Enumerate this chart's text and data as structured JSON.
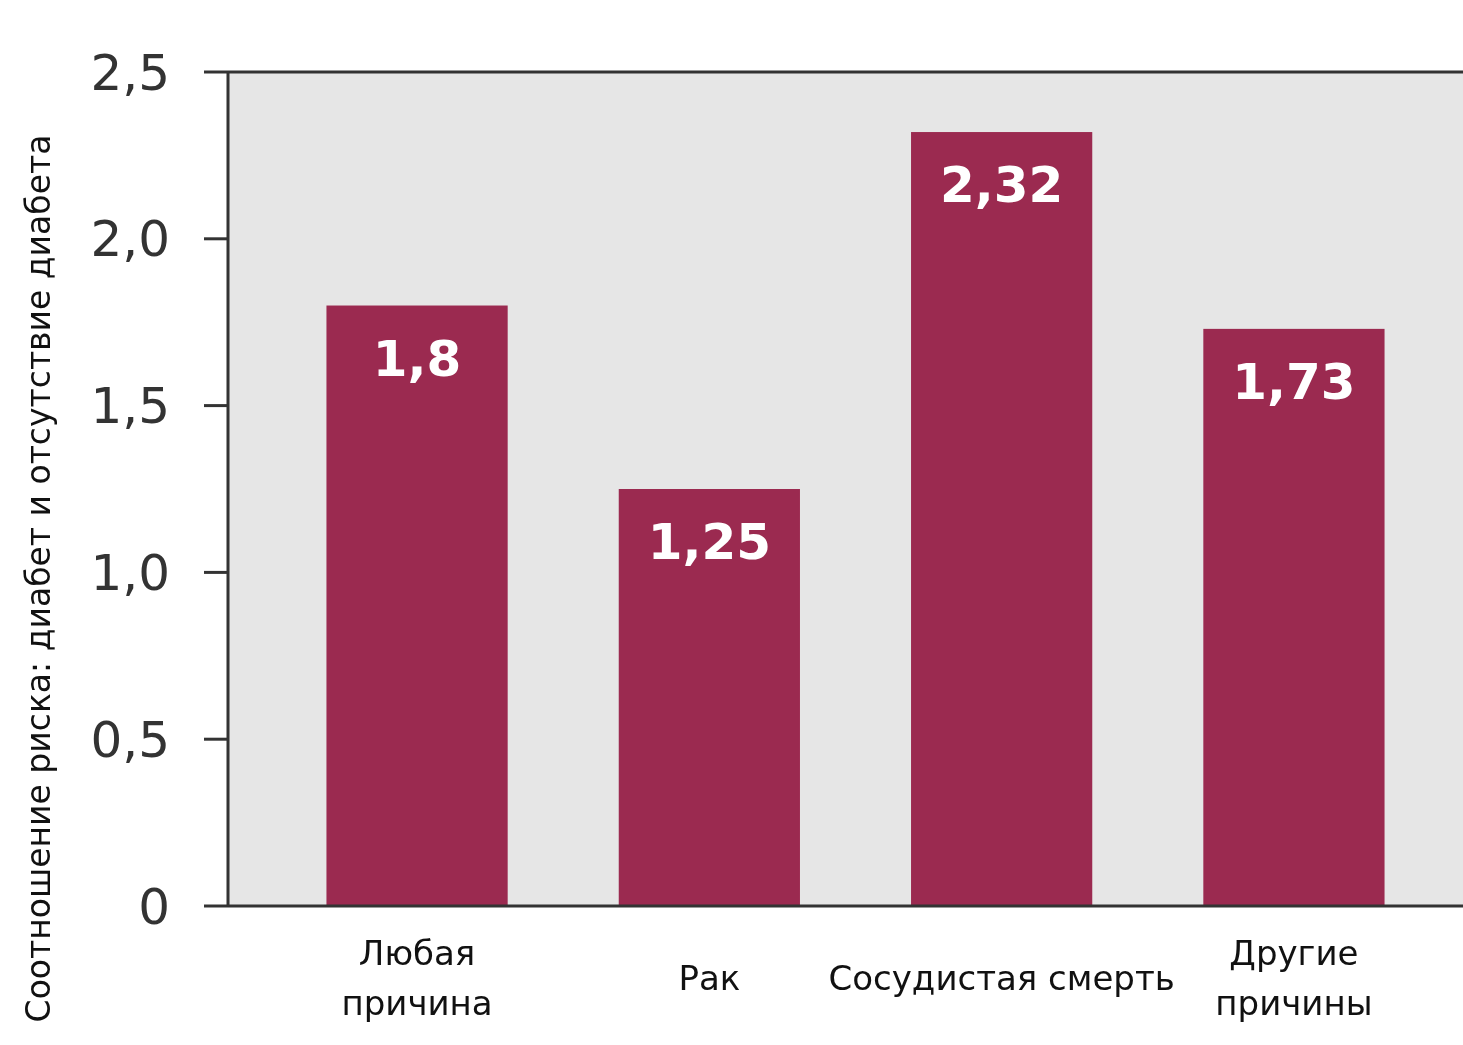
{
  "chart_data": {
    "type": "bar",
    "ylabel": "Соотношение риска: диабет и отсутствие диабета",
    "categories": [
      "Любая\nпричина",
      "Рак",
      "Сосудистая смерть",
      "Другие\nпричины"
    ],
    "values": [
      1.8,
      1.25,
      2.32,
      1.73
    ],
    "value_labels": [
      "1,8",
      "1,25",
      "2,32",
      "1,73"
    ],
    "color": "#9b2a50",
    "ylim": [
      0,
      2.5
    ],
    "yticks": [
      0,
      {
        "value": 0.5,
        "label": "0,5"
      },
      {
        "value": 1,
        "label": "1,0"
      },
      {
        "value": 1.5,
        "label": "1,5"
      },
      {
        "value": 2,
        "label": "2,0"
      },
      {
        "value": 2.5,
        "label": "2,5"
      }
    ],
    "grid": false
  }
}
